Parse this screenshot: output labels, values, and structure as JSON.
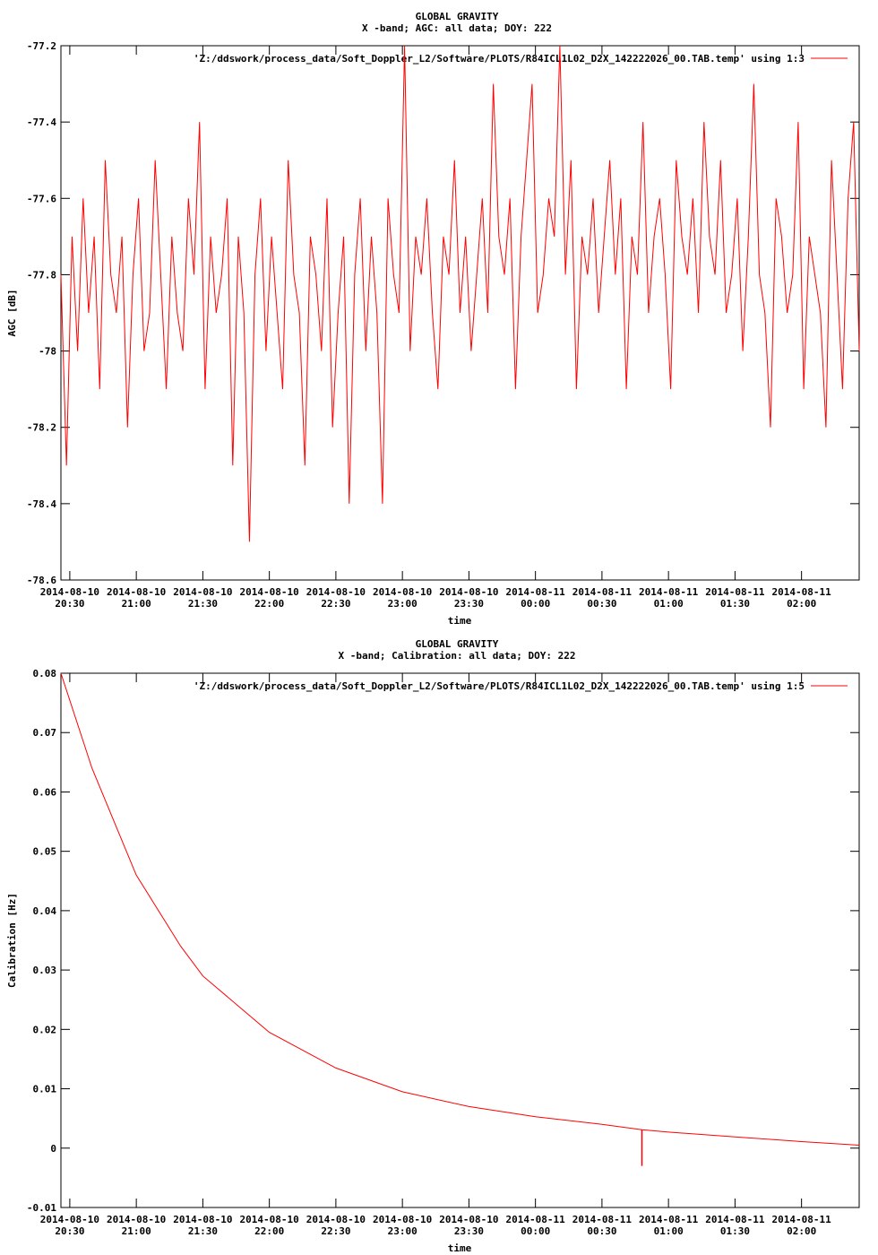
{
  "chart_data": [
    {
      "type": "line",
      "title": "GLOBAL GRAVITY",
      "subtitle": "X -band; AGC: all data; DOY: 222",
      "xlabel": "time",
      "ylabel": "AGC [dB]",
      "legend": "'Z:/ddswork/process_data/Soft_Doppler_L2/Software/PLOTS/R84ICL1L02_D2X_142222026_00.TAB.temp' using 1:3",
      "legend_position": "top-right",
      "color": "#ff0000",
      "x_tick_labels": [
        [
          "2014-08-10",
          "20:30"
        ],
        [
          "2014-08-10",
          "21:00"
        ],
        [
          "2014-08-10",
          "21:30"
        ],
        [
          "2014-08-10",
          "22:00"
        ],
        [
          "2014-08-10",
          "22:30"
        ],
        [
          "2014-08-10",
          "23:00"
        ],
        [
          "2014-08-10",
          "23:30"
        ],
        [
          "2014-08-11",
          "00:00"
        ],
        [
          "2014-08-11",
          "00:30"
        ],
        [
          "2014-08-11",
          "01:00"
        ],
        [
          "2014-08-11",
          "01:30"
        ],
        [
          "2014-08-11",
          "02:00"
        ]
      ],
      "xlim": [
        "2014-08-10 20:26",
        "2014-08-11 02:26"
      ],
      "y_tick_labels": [
        "-77.2",
        "-77.4",
        "-77.6",
        "-77.8",
        "-78",
        "-78.2",
        "-78.4",
        "-78.6"
      ],
      "ylim": [
        -78.6,
        -77.2
      ],
      "grid": false,
      "series": [
        {
          "x_start": "2014-08-10 20:26",
          "x_end": "2014-08-11 02:26",
          "description_values": "noisy AGC around -77.85 dB, mostly between -78.1 and -77.6 dB; trending slightly higher after 23:30",
          "values": [
            -77.8,
            -78.3,
            -77.7,
            -78.0,
            -77.6,
            -77.9,
            -77.7,
            -78.1,
            -77.5,
            -77.8,
            -77.9,
            -77.7,
            -78.2,
            -77.8,
            -77.6,
            -78.0,
            -77.9,
            -77.5,
            -77.8,
            -78.1,
            -77.7,
            -77.9,
            -78.0,
            -77.6,
            -77.8,
            -77.4,
            -78.1,
            -77.7,
            -77.9,
            -77.8,
            -77.6,
            -78.3,
            -77.7,
            -77.9,
            -78.5,
            -77.8,
            -77.6,
            -78.0,
            -77.7,
            -77.9,
            -78.1,
            -77.5,
            -77.8,
            -77.9,
            -78.3,
            -77.7,
            -77.8,
            -78.0,
            -77.6,
            -78.2,
            -77.9,
            -77.7,
            -78.4,
            -77.8,
            -77.6,
            -78.0,
            -77.7,
            -77.9,
            -78.4,
            -77.6,
            -77.8,
            -77.9,
            -77.2,
            -78.0,
            -77.7,
            -77.8,
            -77.6,
            -77.9,
            -78.1,
            -77.7,
            -77.8,
            -77.5,
            -77.9,
            -77.7,
            -78.0,
            -77.8,
            -77.6,
            -77.9,
            -77.3,
            -77.7,
            -77.8,
            -77.6,
            -78.1,
            -77.7,
            -77.5,
            -77.3,
            -77.9,
            -77.8,
            -77.6,
            -77.7,
            -77.2,
            -77.8,
            -77.5,
            -78.1,
            -77.7,
            -77.8,
            -77.6,
            -77.9,
            -77.7,
            -77.5,
            -77.8,
            -77.6,
            -78.1,
            -77.7,
            -77.8,
            -77.4,
            -77.9,
            -77.7,
            -77.6,
            -77.8,
            -78.1,
            -77.5,
            -77.7,
            -77.8,
            -77.6,
            -77.9,
            -77.4,
            -77.7,
            -77.8,
            -77.5,
            -77.9,
            -77.8,
            -77.6,
            -78.0,
            -77.7,
            -77.3,
            -77.8,
            -77.9,
            -78.2,
            -77.6,
            -77.7,
            -77.9,
            -77.8,
            -77.4,
            -78.1,
            -77.7,
            -77.8,
            -77.9,
            -78.2,
            -77.5,
            -77.8,
            -78.1,
            -77.6,
            -77.4,
            -78.0
          ]
        }
      ]
    },
    {
      "type": "line",
      "title": "GLOBAL GRAVITY",
      "subtitle": "X -band; Calibration: all data; DOY: 222",
      "xlabel": "time",
      "ylabel": "Calibration [Hz]",
      "legend": "'Z:/ddswork/process_data/Soft_Doppler_L2/Software/PLOTS/R84ICL1L02_D2X_142222026_00.TAB.temp' using 1:5",
      "legend_position": "top-right",
      "color": "#ff0000",
      "x_tick_labels": [
        [
          "2014-08-10",
          "20:30"
        ],
        [
          "2014-08-10",
          "21:00"
        ],
        [
          "2014-08-10",
          "21:30"
        ],
        [
          "2014-08-10",
          "22:00"
        ],
        [
          "2014-08-10",
          "22:30"
        ],
        [
          "2014-08-10",
          "23:00"
        ],
        [
          "2014-08-10",
          "23:30"
        ],
        [
          "2014-08-11",
          "00:00"
        ],
        [
          "2014-08-11",
          "00:30"
        ],
        [
          "2014-08-11",
          "01:00"
        ],
        [
          "2014-08-11",
          "01:30"
        ],
        [
          "2014-08-11",
          "02:00"
        ]
      ],
      "xlim": [
        "2014-08-10 20:26",
        "2014-08-11 02:26"
      ],
      "y_tick_labels": [
        "0.08",
        "0.07",
        "0.06",
        "0.05",
        "0.04",
        "0.03",
        "0.02",
        "0.01",
        "0",
        "-0.01"
      ],
      "ylim": [
        -0.01,
        0.08
      ],
      "grid": false,
      "series": [
        {
          "x": [
            "2014-08-10 20:26",
            "2014-08-10 20:40",
            "2014-08-10 21:00",
            "2014-08-10 21:20",
            "2014-08-10 21:30",
            "2014-08-10 22:00",
            "2014-08-10 22:30",
            "2014-08-10 23:00",
            "2014-08-10 23:30",
            "2014-08-11 00:00",
            "2014-08-11 00:30",
            "2014-08-11 00:48",
            "2014-08-11 01:00",
            "2014-08-11 01:30",
            "2014-08-11 02:00",
            "2014-08-11 02:26"
          ],
          "values": [
            0.08,
            0.064,
            0.046,
            0.034,
            0.029,
            0.0195,
            0.0135,
            0.0095,
            0.007,
            0.0053,
            0.004,
            0.0031,
            0.0027,
            0.0019,
            0.0011,
            0.0005
          ],
          "spike": {
            "x": "2014-08-11 00:48",
            "value": -0.003
          }
        }
      ]
    }
  ]
}
